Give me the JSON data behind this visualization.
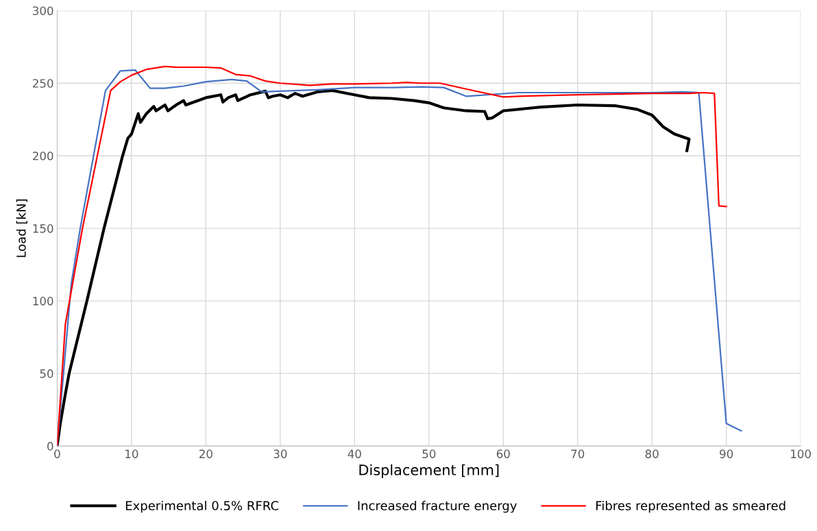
{
  "chart_data": {
    "type": "line",
    "xlabel": "Displacement [mm]",
    "ylabel": "Load [kN]",
    "xlim": [
      0,
      100
    ],
    "xticks": [
      0,
      10,
      20,
      30,
      40,
      50,
      60,
      70,
      80,
      90,
      100
    ],
    "ylim": [
      0,
      300
    ],
    "yticks": [
      0,
      50,
      100,
      150,
      200,
      250,
      300
    ],
    "grid": true,
    "legend": "bottom",
    "marker": "none",
    "line_style": "solid",
    "series": [
      {
        "name": "Experimental 0.5% RFRC",
        "color": "#000000",
        "x": [
          0,
          0.4,
          1,
          1.6,
          4,
          6.3,
          8.8,
          9.5,
          10,
          10.9,
          11.2,
          12,
          13,
          13.3,
          14.5,
          14.9,
          16,
          17,
          17.3,
          20,
          22,
          22.3,
          23,
          24,
          24.3,
          26,
          28,
          28.4,
          29,
          30,
          31,
          32,
          33,
          35,
          37,
          38,
          40,
          42,
          45,
          48,
          50,
          52,
          55,
          57.5,
          57.9,
          58.5,
          60,
          65,
          70,
          75,
          78,
          80,
          81.5,
          83,
          85,
          84.7
        ],
        "values": [
          0,
          15,
          33,
          50,
          100,
          150,
          200,
          212,
          215,
          229,
          223,
          229,
          234,
          231,
          235,
          231,
          235,
          238,
          235,
          240,
          242,
          237,
          240,
          242,
          238,
          242,
          244.5,
          240,
          241,
          242,
          240,
          243,
          241,
          244,
          245,
          244,
          242,
          240,
          239.5,
          238,
          236.5,
          233,
          231,
          230.5,
          225.5,
          226,
          231,
          233.5,
          235,
          234.5,
          232,
          228,
          220,
          215,
          211.5,
          203.5
        ]
      },
      {
        "name": "Increased fracture energy",
        "color": "#4472c4",
        "x": [
          0,
          1.9,
          3.1,
          6.5,
          8.5,
          10.5,
          12.5,
          14.5,
          17,
          20,
          23.5,
          25.5,
          27.5,
          30,
          35,
          40,
          45,
          49,
          52,
          55,
          62,
          70,
          80,
          84,
          86.3,
          90,
          92
        ],
        "values": [
          0,
          112,
          150,
          245,
          258.5,
          259,
          246.5,
          246.5,
          248,
          251,
          252.5,
          251.5,
          244,
          244.5,
          245.5,
          247,
          247,
          247.5,
          247,
          241,
          243.5,
          243.5,
          243.5,
          244,
          243.5,
          15.5,
          10.5
        ]
      },
      {
        "name": "Fibres represented as smeared",
        "color": "#ff0000",
        "x": [
          0,
          1.1,
          3.4,
          7.2,
          8.5,
          10,
          12,
          14.5,
          16,
          20,
          22,
          24,
          26,
          28,
          30,
          34,
          37,
          40,
          45,
          47,
          49,
          51.5,
          55,
          60,
          62,
          70,
          80,
          85,
          87,
          88.4,
          89,
          90
        ],
        "values": [
          0,
          84,
          150,
          245,
          251,
          255.5,
          259.5,
          261.5,
          261,
          261,
          260.5,
          256,
          255,
          251.5,
          250,
          248.5,
          249.5,
          249.5,
          250,
          250.5,
          250,
          250,
          246,
          240.5,
          241,
          242,
          243,
          243,
          243.5,
          243,
          165.5,
          165
        ]
      }
    ]
  }
}
